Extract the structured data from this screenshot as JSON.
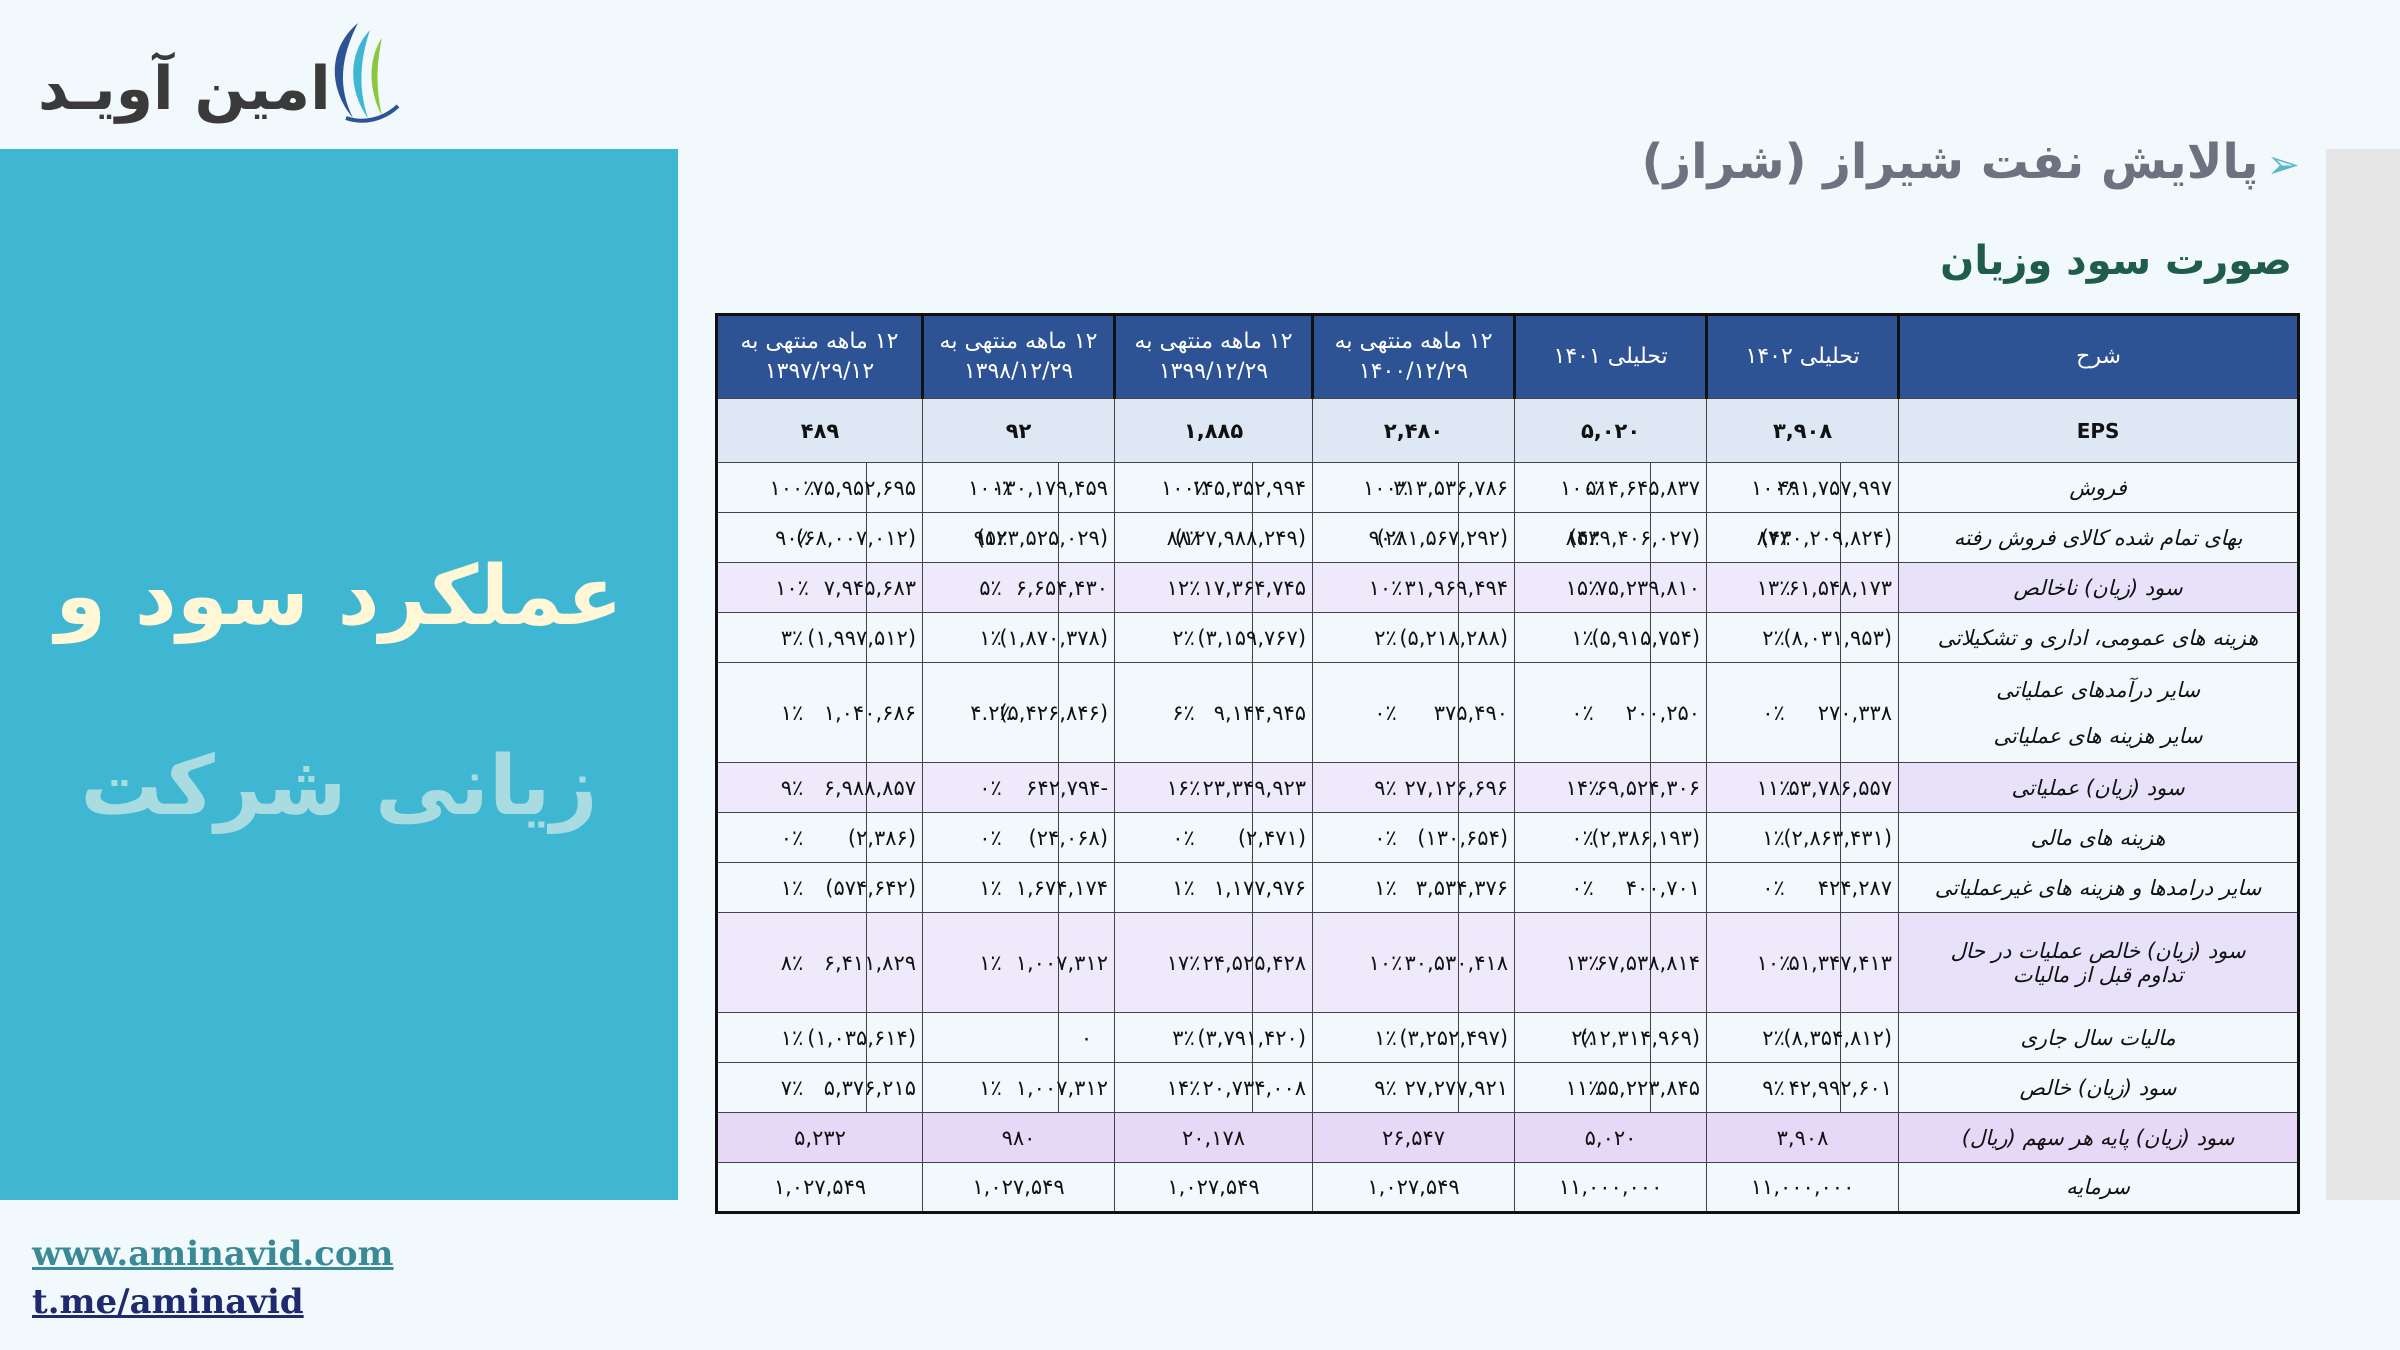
{
  "logo": {
    "text": "امین آویـد"
  },
  "hero": {
    "line1": "عملکرد سود و",
    "line2": "زیانی شرکت"
  },
  "links": {
    "website": "www.aminavid.com",
    "telegram": "t.me/aminavid"
  },
  "company_title": "پالایش نفت شیراز (شراز)",
  "statement_title": "صورت سود وزیان",
  "colors": {
    "panel": "#3fb7d3",
    "header": "#2e5394",
    "negative": "#c0002a"
  },
  "table": {
    "header": {
      "label": "شرح",
      "cols": [
        "تحلیلی ۱۴۰۲",
        "تحلیلی ۱۴۰۱",
        "۱۲ ماهه منتهی به ۱۴۰۰/۱۲/۲۹",
        "۱۲ ماهه منتهی به ۱۳۹۹/۱۲/۲۹",
        "۱۲ ماهه منتهی به ۱۳۹۸/۱۲/۲۹",
        "۱۲ ماهه منتهی به ۱۳۹۷/۲۹/۱۲"
      ]
    },
    "eps": {
      "label": "EPS",
      "values": [
        "۳,۹۰۸",
        "۵,۰۲۰",
        "۲,۴۸۰",
        "۱,۸۸۵",
        "۹۲",
        "۴۸۹"
      ]
    },
    "rows": [
      {
        "label": "فروش",
        "hl": false,
        "cells": [
          [
            "۴۹۱,۷۵۷,۹۹۷",
            "۱۰۰٪"
          ],
          [
            "۵۱۴,۶۴۵,۸۳۷",
            "۱۰۰٪"
          ],
          [
            "۳۱۳,۵۳۶,۷۸۶",
            "۱۰۰٪"
          ],
          [
            "۱۴۵,۳۵۲,۹۹۴",
            "۱۰۰٪"
          ],
          [
            "۱۳۰,۱۷۹,۴۵۹",
            "۱۰۰٪"
          ],
          [
            "۷۵,۹۵۲,۶۹۵",
            "۱۰۰٪"
          ]
        ]
      },
      {
        "label": "بهای تمام شده کالای فروش رفته",
        "hl": false,
        "cells": [
          [
            "(۴۳۰,۲۰۹,۸۲۴)",
            "۸۷٪"
          ],
          [
            "(۴۳۹,۴۰۶,۰۲۷)",
            "۸۵٪"
          ],
          [
            "(۲۸۱,۵۶۷,۲۹۲)",
            "۹۰٪"
          ],
          [
            "(۱۲۷,۹۸۸,۲۴۹)",
            "۸۸٪"
          ],
          [
            "(۱۲۳,۵۲۵,۰۲۹)",
            "۹۵٪"
          ],
          [
            "(۶۸,۰۰۷,۰۱۲)",
            "۹۰٪"
          ]
        ]
      },
      {
        "label": "سود (زیان) ناخالص",
        "hl": true,
        "cells": [
          [
            "۶۱,۵۴۸,۱۷۳",
            "۱۳٪"
          ],
          [
            "۷۵,۲۳۹,۸۱۰",
            "۱۵٪"
          ],
          [
            "۳۱,۹۶۹,۴۹۴",
            "۱۰٪"
          ],
          [
            "۱۷,۳۶۴,۷۴۵",
            "۱۲٪"
          ],
          [
            "۶,۶۵۴,۴۳۰",
            "۵٪"
          ],
          [
            "۷,۹۴۵,۶۸۳",
            "۱۰٪"
          ]
        ]
      },
      {
        "label": "هزینه های عمومی، اداری و تشکیلاتی",
        "hl": false,
        "cells": [
          [
            "(۸,۰۳۱,۹۵۳)",
            "۲٪"
          ],
          [
            "(۵,۹۱۵,۷۵۴)",
            "۱٪"
          ],
          [
            "(۵,۲۱۸,۲۸۸)",
            "۲٪"
          ],
          [
            "(۳,۱۵۹,۷۶۷)",
            "۲٪"
          ],
          [
            "(۱,۸۷۰,۳۷۸)",
            "۱٪"
          ],
          [
            "(۱,۹۹۷,۵۱۲)",
            "۳٪"
          ]
        ]
      },
      {
        "label": "سایر درآمدهای عملیاتی",
        "label2": "سایر هزینه های عملیاتی",
        "hl": false,
        "tall": true,
        "cells": [
          [
            "۲۷۰,۳۳۸",
            "۰٪"
          ],
          [
            "۲۰۰,۲۵۰",
            "۰٪"
          ],
          [
            "۳۷۵,۴۹۰",
            "۰٪"
          ],
          [
            "۹,۱۴۴,۹۴۵",
            "۶٪"
          ],
          [
            "(۵,۴۲۶,۸۴۶)",
            "۴.۲٪"
          ],
          [
            "۱,۰۴۰,۶۸۶",
            "۱٪"
          ]
        ]
      },
      {
        "label": "سود (زیان) عملیاتی",
        "hl": true,
        "cells": [
          [
            "۵۳,۷۸۶,۵۵۷",
            "۱۱٪"
          ],
          [
            "۶۹,۵۲۴,۳۰۶",
            "۱۴٪"
          ],
          [
            "۲۷,۱۲۶,۶۹۶",
            "۹٪"
          ],
          [
            "۲۳,۳۴۹,۹۲۳",
            "۱۶٪"
          ],
          [
            "-۶۴۲,۷۹۴",
            "۰٪"
          ],
          [
            "۶,۹۸۸,۸۵۷",
            "۹٪"
          ]
        ]
      },
      {
        "label": "هزینه های مالی",
        "hl": false,
        "cells": [
          [
            "(۲,۸۶۳,۴۳۱)",
            "۱٪"
          ],
          [
            "(۲,۳۸۶,۱۹۳)",
            "۰٪"
          ],
          [
            "(۱۳۰,۶۵۴)",
            "۰٪"
          ],
          [
            "(۲,۴۷۱)",
            "۰٪"
          ],
          [
            "(۲۴,۰۶۸)",
            "۰٪"
          ],
          [
            "(۲,۳۸۶)",
            "۰٪"
          ]
        ]
      },
      {
        "label": "سایر درامدها و هزینه های غیرعملیاتی",
        "hl": false,
        "cells": [
          [
            "۴۲۴,۲۸۷",
            "۰٪"
          ],
          [
            "۴۰۰,۷۰۱",
            "۰٪"
          ],
          [
            "۳,۵۳۴,۳۷۶",
            "۱٪"
          ],
          [
            "۱,۱۷۷,۹۷۶",
            "۱٪"
          ],
          [
            "۱,۶۷۴,۱۷۴",
            "۱٪"
          ],
          [
            "(۵۷۴,۶۴۲)",
            "۱٪"
          ]
        ]
      },
      {
        "label": "سود (زیان) خالص عملیات در حال",
        "label2": "تداوم قبل از مالیات",
        "hl": true,
        "tall": true,
        "cells": [
          [
            "۵۱,۳۴۷,۴۱۳",
            "۱۰٪"
          ],
          [
            "۶۷,۵۳۸,۸۱۴",
            "۱۳٪"
          ],
          [
            "۳۰,۵۳۰,۴۱۸",
            "۱۰٪"
          ],
          [
            "۲۴,۵۲۵,۴۲۸",
            "۱۷٪"
          ],
          [
            "۱,۰۰۷,۳۱۲",
            "۱٪"
          ],
          [
            "۶,۴۱۱,۸۲۹",
            "۸٪"
          ]
        ]
      },
      {
        "label": "مالیات سال جاری",
        "hl": false,
        "cells": [
          [
            "(۸,۳۵۴,۸۱۲)",
            "۲٪"
          ],
          [
            "(۱۲,۳۱۴,۹۶۹)",
            "۲٪"
          ],
          [
            "(۳,۲۵۲,۴۹۷)",
            "۱٪"
          ],
          [
            "(۳,۷۹۱,۴۲۰)",
            "۳٪"
          ],
          [
            "۰",
            ""
          ],
          [
            "(۱,۰۳۵,۶۱۴)",
            "۱٪"
          ]
        ]
      },
      {
        "label": "سود (زیان) خالص",
        "hl": false,
        "cells": [
          [
            "۴۲,۹۹۲,۶۰۱",
            "۹٪"
          ],
          [
            "۵۵,۲۲۳,۸۴۵",
            "۱۱٪"
          ],
          [
            "۲۷,۲۷۷,۹۲۱",
            "۹٪"
          ],
          [
            "۲۰,۷۳۴,۰۰۸",
            "۱۴٪"
          ],
          [
            "۱,۰۰۷,۳۱۲",
            "۱٪"
          ],
          [
            "۵,۳۷۶,۲۱۵",
            "۷٪"
          ]
        ]
      }
    ],
    "eps_row": {
      "label": "سود (زیان)  پایه هر سهم (ریال)",
      "values": [
        "۳,۹۰۸",
        "۵,۰۲۰",
        "۲۶,۵۴۷",
        "۲۰,۱۷۸",
        "۹۸۰",
        "۵,۲۳۲"
      ]
    },
    "capital_row": {
      "label": "سرمایه",
      "values": [
        "۱۱,۰۰۰,۰۰۰",
        "۱۱,۰۰۰,۰۰۰",
        "۱,۰۲۷,۵۴۹",
        "۱,۰۲۷,۵۴۹",
        "۱,۰۲۷,۵۴۹",
        "۱,۰۲۷,۵۴۹"
      ]
    }
  }
}
